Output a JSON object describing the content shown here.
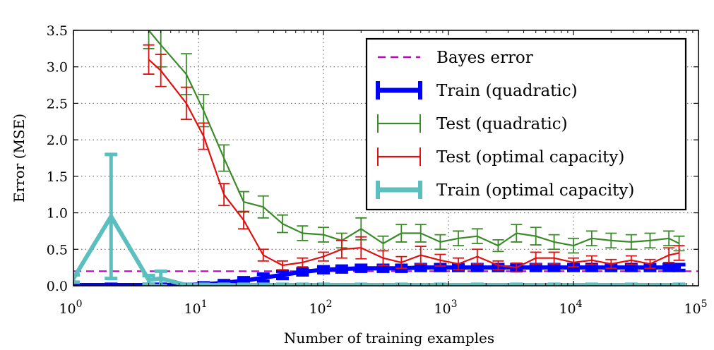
{
  "chart_data": {
    "type": "line",
    "title": "",
    "xlabel": "Number of training examples",
    "ylabel": "Error (MSE)",
    "xscale": "log",
    "xlim": [
      1,
      100000
    ],
    "ylim": [
      0,
      3.5
    ],
    "grid": true,
    "legend_position": "top-right",
    "x_ticks": [
      {
        "value": 1,
        "base": "10",
        "exp": "0"
      },
      {
        "value": 10,
        "base": "10",
        "exp": "1"
      },
      {
        "value": 100,
        "base": "10",
        "exp": "2"
      },
      {
        "value": 1000,
        "base": "10",
        "exp": "3"
      },
      {
        "value": 10000,
        "base": "10",
        "exp": "4"
      },
      {
        "value": 100000,
        "base": "10",
        "exp": "5"
      }
    ],
    "y_ticks": [
      {
        "value": 0,
        "label": "0.0"
      },
      {
        "value": 0.5,
        "label": "0.5"
      },
      {
        "value": 1,
        "label": "1.0"
      },
      {
        "value": 1.5,
        "label": "1.5"
      },
      {
        "value": 2,
        "label": "2.0"
      },
      {
        "value": 2.5,
        "label": "2.5"
      },
      {
        "value": 3,
        "label": "3.0"
      },
      {
        "value": 3.5,
        "label": "3.5"
      }
    ],
    "bayes_error": {
      "name": "Bayes error",
      "value": 0.2,
      "color": "#bf00bf"
    },
    "series": [
      {
        "name": "Train (quadratic)",
        "color": "#0000ff",
        "style": "thick",
        "points": [
          {
            "x": 1,
            "y": 0.01,
            "err": 0.01
          },
          {
            "x": 2,
            "y": 0.01,
            "err": 0.01
          },
          {
            "x": 4,
            "y": 0.01,
            "err": 0.01
          },
          {
            "x": 5,
            "y": 0.01,
            "err": 0.01
          },
          {
            "x": 8,
            "y": 0.01,
            "err": 0.01
          },
          {
            "x": 11,
            "y": 0.02,
            "err": 0.02
          },
          {
            "x": 16,
            "y": 0.04,
            "err": 0.03
          },
          {
            "x": 23,
            "y": 0.07,
            "err": 0.04
          },
          {
            "x": 33,
            "y": 0.11,
            "err": 0.05
          },
          {
            "x": 47,
            "y": 0.15,
            "err": 0.05
          },
          {
            "x": 68,
            "y": 0.19,
            "err": 0.04
          },
          {
            "x": 100,
            "y": 0.22,
            "err": 0.04
          },
          {
            "x": 140,
            "y": 0.23,
            "err": 0.04
          },
          {
            "x": 200,
            "y": 0.24,
            "err": 0.04
          },
          {
            "x": 300,
            "y": 0.24,
            "err": 0.04
          },
          {
            "x": 420,
            "y": 0.24,
            "err": 0.04
          },
          {
            "x": 600,
            "y": 0.25,
            "err": 0.04
          },
          {
            "x": 860,
            "y": 0.25,
            "err": 0.04
          },
          {
            "x": 1200,
            "y": 0.25,
            "err": 0.04
          },
          {
            "x": 1700,
            "y": 0.25,
            "err": 0.04
          },
          {
            "x": 2500,
            "y": 0.25,
            "err": 0.04
          },
          {
            "x": 3500,
            "y": 0.25,
            "err": 0.04
          },
          {
            "x": 5000,
            "y": 0.25,
            "err": 0.04
          },
          {
            "x": 7000,
            "y": 0.25,
            "err": 0.04
          },
          {
            "x": 10000,
            "y": 0.25,
            "err": 0.04
          },
          {
            "x": 14000,
            "y": 0.25,
            "err": 0.04
          },
          {
            "x": 20000,
            "y": 0.25,
            "err": 0.04
          },
          {
            "x": 29000,
            "y": 0.25,
            "err": 0.04
          },
          {
            "x": 41000,
            "y": 0.25,
            "err": 0.04
          },
          {
            "x": 58000,
            "y": 0.25,
            "err": 0.04
          },
          {
            "x": 70000,
            "y": 0.25,
            "err": 0.04
          }
        ]
      },
      {
        "name": "Test (quadratic)",
        "color": "#3a8a2a",
        "style": "thin",
        "points": [
          {
            "x": 4,
            "y": 3.5,
            "err": 0.25
          },
          {
            "x": 5,
            "y": 3.3,
            "err": 0.3
          },
          {
            "x": 8,
            "y": 2.9,
            "err": 0.28
          },
          {
            "x": 11,
            "y": 2.4,
            "err": 0.22
          },
          {
            "x": 16,
            "y": 1.75,
            "err": 0.18
          },
          {
            "x": 23,
            "y": 1.15,
            "err": 0.14
          },
          {
            "x": 33,
            "y": 1.08,
            "err": 0.15
          },
          {
            "x": 47,
            "y": 0.85,
            "err": 0.12
          },
          {
            "x": 68,
            "y": 0.72,
            "err": 0.1
          },
          {
            "x": 100,
            "y": 0.7,
            "err": 0.1
          },
          {
            "x": 140,
            "y": 0.62,
            "err": 0.1
          },
          {
            "x": 200,
            "y": 0.78,
            "err": 0.15
          },
          {
            "x": 300,
            "y": 0.58,
            "err": 0.1
          },
          {
            "x": 420,
            "y": 0.72,
            "err": 0.12
          },
          {
            "x": 600,
            "y": 0.72,
            "err": 0.12
          },
          {
            "x": 860,
            "y": 0.6,
            "err": 0.1
          },
          {
            "x": 1200,
            "y": 0.65,
            "err": 0.1
          },
          {
            "x": 1700,
            "y": 0.68,
            "err": 0.1
          },
          {
            "x": 2500,
            "y": 0.55,
            "err": 0.08
          },
          {
            "x": 3500,
            "y": 0.72,
            "err": 0.12
          },
          {
            "x": 5000,
            "y": 0.68,
            "err": 0.12
          },
          {
            "x": 7000,
            "y": 0.6,
            "err": 0.1
          },
          {
            "x": 10000,
            "y": 0.55,
            "err": 0.1
          },
          {
            "x": 14000,
            "y": 0.65,
            "err": 0.1
          },
          {
            "x": 20000,
            "y": 0.62,
            "err": 0.1
          },
          {
            "x": 29000,
            "y": 0.6,
            "err": 0.1
          },
          {
            "x": 41000,
            "y": 0.62,
            "err": 0.1
          },
          {
            "x": 58000,
            "y": 0.65,
            "err": 0.1
          },
          {
            "x": 70000,
            "y": 0.58,
            "err": 0.1
          }
        ]
      },
      {
        "name": "Test (optimal capacity)",
        "color": "#e01010",
        "style": "thin",
        "points": [
          {
            "x": 4,
            "y": 3.1,
            "err": 0.2
          },
          {
            "x": 5,
            "y": 2.95,
            "err": 0.22
          },
          {
            "x": 8,
            "y": 2.5,
            "err": 0.22
          },
          {
            "x": 11,
            "y": 2.05,
            "err": 0.18
          },
          {
            "x": 16,
            "y": 1.25,
            "err": 0.15
          },
          {
            "x": 23,
            "y": 0.9,
            "err": 0.12
          },
          {
            "x": 33,
            "y": 0.42,
            "err": 0.08
          },
          {
            "x": 47,
            "y": 0.28,
            "err": 0.06
          },
          {
            "x": 68,
            "y": 0.32,
            "err": 0.06
          },
          {
            "x": 100,
            "y": 0.4,
            "err": 0.06
          },
          {
            "x": 140,
            "y": 0.5,
            "err": 0.12
          },
          {
            "x": 200,
            "y": 0.52,
            "err": 0.15
          },
          {
            "x": 300,
            "y": 0.38,
            "err": 0.1
          },
          {
            "x": 420,
            "y": 0.32,
            "err": 0.08
          },
          {
            "x": 600,
            "y": 0.42,
            "err": 0.12
          },
          {
            "x": 860,
            "y": 0.35,
            "err": 0.08
          },
          {
            "x": 1200,
            "y": 0.3,
            "err": 0.08
          },
          {
            "x": 1700,
            "y": 0.4,
            "err": 0.1
          },
          {
            "x": 2500,
            "y": 0.28,
            "err": 0.06
          },
          {
            "x": 3500,
            "y": 0.25,
            "err": 0.06
          },
          {
            "x": 5000,
            "y": 0.38,
            "err": 0.08
          },
          {
            "x": 7000,
            "y": 0.38,
            "err": 0.08
          },
          {
            "x": 10000,
            "y": 0.32,
            "err": 0.06
          },
          {
            "x": 14000,
            "y": 0.35,
            "err": 0.06
          },
          {
            "x": 20000,
            "y": 0.3,
            "err": 0.06
          },
          {
            "x": 29000,
            "y": 0.35,
            "err": 0.06
          },
          {
            "x": 41000,
            "y": 0.3,
            "err": 0.06
          },
          {
            "x": 58000,
            "y": 0.42,
            "err": 0.1
          },
          {
            "x": 70000,
            "y": 0.45,
            "err": 0.1
          }
        ]
      },
      {
        "name": "Train (optimal capacity)",
        "color": "#5bbfbf",
        "style": "thick",
        "points": [
          {
            "x": 1,
            "y": 0.1,
            "err": 0.05
          },
          {
            "x": 2,
            "y": 0.95,
            "err": 0.85
          },
          {
            "x": 4,
            "y": 0.08,
            "err": 0.06
          },
          {
            "x": 5,
            "y": 0.1,
            "err": 0.1
          },
          {
            "x": 8,
            "y": 0.01,
            "err": 0.01
          },
          {
            "x": 11,
            "y": 0.01,
            "err": 0.01
          },
          {
            "x": 16,
            "y": 0.01,
            "err": 0.01
          },
          {
            "x": 23,
            "y": 0.01,
            "err": 0.01
          },
          {
            "x": 33,
            "y": 0.01,
            "err": 0.01
          },
          {
            "x": 47,
            "y": 0.01,
            "err": 0.01
          },
          {
            "x": 68,
            "y": 0.01,
            "err": 0.01
          },
          {
            "x": 100,
            "y": 0.01,
            "err": 0.01
          },
          {
            "x": 200,
            "y": 0.01,
            "err": 0.01
          },
          {
            "x": 420,
            "y": 0.01,
            "err": 0.01
          },
          {
            "x": 860,
            "y": 0.01,
            "err": 0.01
          },
          {
            "x": 1700,
            "y": 0.01,
            "err": 0.01
          },
          {
            "x": 3500,
            "y": 0.01,
            "err": 0.01
          },
          {
            "x": 7000,
            "y": 0.01,
            "err": 0.01
          },
          {
            "x": 14000,
            "y": 0.01,
            "err": 0.01
          },
          {
            "x": 29000,
            "y": 0.01,
            "err": 0.01
          },
          {
            "x": 70000,
            "y": 0.01,
            "err": 0.01
          }
        ]
      }
    ]
  }
}
